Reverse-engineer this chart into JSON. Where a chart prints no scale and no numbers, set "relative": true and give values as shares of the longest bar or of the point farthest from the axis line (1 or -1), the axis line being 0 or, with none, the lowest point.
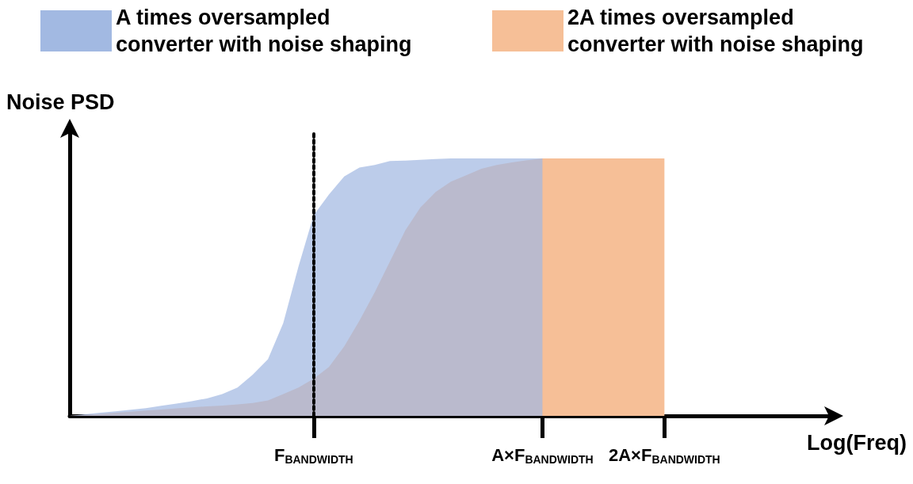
{
  "chart_data": {
    "type": "area",
    "relative": true,
    "xlabel": "Log(Freq)",
    "ylabel": "Noise PSD",
    "categories": [
      null,
      null,
      null,
      null,
      null,
      null,
      null,
      null,
      null,
      null,
      null,
      null,
      null,
      null,
      null,
      null,
      "F$_{BANDWIDTH}$",
      null,
      null,
      null,
      null,
      null,
      null,
      null,
      null,
      null,
      null,
      null,
      null,
      null,
      null,
      "A×F$_{BANDWIDTH}$",
      null,
      null,
      null,
      null,
      null,
      null,
      null,
      "2A×F$_{BANDWIDTH}$",
      null,
      null,
      null,
      null,
      null,
      null,
      null,
      null,
      null,
      null,
      null
    ],
    "series": [
      {
        "name": "2A times oversampled converter with noise shaping",
        "color": "#f6bf97",
        "values": [
          0,
          0.004,
          0.008,
          0.012,
          0.016,
          0.021,
          0.025,
          0.029,
          0.033,
          0.037,
          0.04,
          0.045,
          0.05,
          0.06,
          0.085,
          0.11,
          0.145,
          0.19,
          0.27,
          0.37,
          0.48,
          0.6,
          0.72,
          0.81,
          0.87,
          0.91,
          0.935,
          0.96,
          0.975,
          0.985,
          0.993,
          1,
          1,
          1,
          1,
          1,
          1,
          1,
          1,
          1,
          null,
          null,
          null,
          null,
          null,
          null,
          null,
          null,
          null,
          null,
          null
        ]
      },
      {
        "name": "A times oversampled converter with noise shaping",
        "color": "#a2b9e2",
        "values": [
          0,
          0.006,
          0.012,
          0.018,
          0.024,
          0.03,
          0.039,
          0.048,
          0.057,
          0.068,
          0.085,
          0.11,
          0.16,
          0.22,
          0.36,
          0.58,
          0.78,
          0.86,
          0.93,
          0.965,
          0.975,
          0.99,
          0.992,
          0.995,
          0.998,
          1,
          1,
          1,
          1,
          1,
          1,
          1,
          null,
          null,
          null,
          null,
          null,
          null,
          null,
          null,
          null,
          null,
          null,
          null,
          null,
          null,
          null,
          null,
          null,
          null,
          null
        ]
      }
    ],
    "ref_lines": [
      {
        "axis": "x",
        "value": "F$_{BANDWIDTH}$",
        "color": "#000000",
        "line_style": "dotted"
      }
    ],
    "legend": "top",
    "grid": false,
    "marker": "none"
  }
}
